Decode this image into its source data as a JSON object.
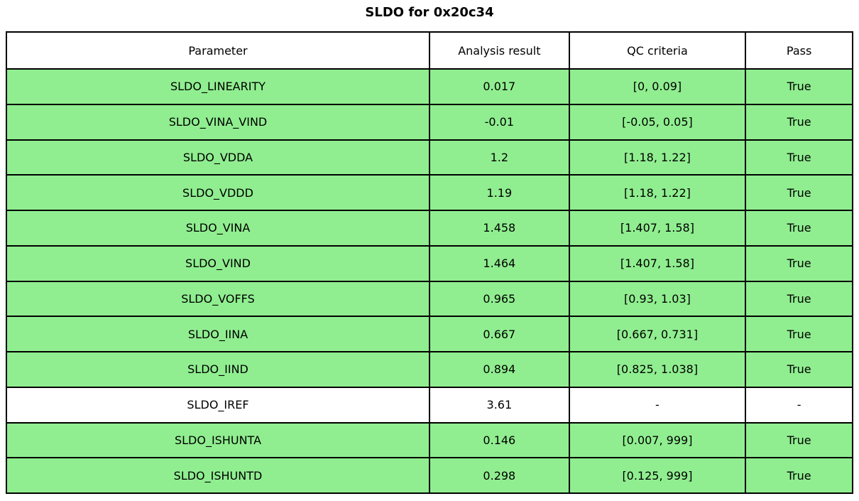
{
  "title": "SLDO for 0x20c34",
  "table": {
    "columns": [
      "Parameter",
      "Analysis result",
      "QC criteria",
      "Pass"
    ],
    "rows": [
      {
        "parameter": "SLDO_LINEARITY",
        "result": "0.017",
        "qc": "[0, 0.09]",
        "pass": "True",
        "highlight": true
      },
      {
        "parameter": "SLDO_VINA_VIND",
        "result": "-0.01",
        "qc": "[-0.05, 0.05]",
        "pass": "True",
        "highlight": true
      },
      {
        "parameter": "SLDO_VDDA",
        "result": "1.2",
        "qc": "[1.18, 1.22]",
        "pass": "True",
        "highlight": true
      },
      {
        "parameter": "SLDO_VDDD",
        "result": "1.19",
        "qc": "[1.18, 1.22]",
        "pass": "True",
        "highlight": true
      },
      {
        "parameter": "SLDO_VINA",
        "result": "1.458",
        "qc": "[1.407, 1.58]",
        "pass": "True",
        "highlight": true
      },
      {
        "parameter": "SLDO_VIND",
        "result": "1.464",
        "qc": "[1.407, 1.58]",
        "pass": "True",
        "highlight": true
      },
      {
        "parameter": "SLDO_VOFFS",
        "result": "0.965",
        "qc": "[0.93, 1.03]",
        "pass": "True",
        "highlight": true
      },
      {
        "parameter": "SLDO_IINA",
        "result": "0.667",
        "qc": "[0.667, 0.731]",
        "pass": "True",
        "highlight": true
      },
      {
        "parameter": "SLDO_IIND",
        "result": "0.894",
        "qc": "[0.825, 1.038]",
        "pass": "True",
        "highlight": true
      },
      {
        "parameter": "SLDO_IREF",
        "result": "3.61",
        "qc": "-",
        "pass": "-",
        "highlight": false
      },
      {
        "parameter": "SLDO_ISHUNTA",
        "result": "0.146",
        "qc": "[0.007, 999]",
        "pass": "True",
        "highlight": true
      },
      {
        "parameter": "SLDO_ISHUNTD",
        "result": "0.298",
        "qc": "[0.125, 999]",
        "pass": "True",
        "highlight": true
      }
    ],
    "colors": {
      "pass_row": "#90EE90",
      "neutral_row": "#FFFFFF",
      "border": "#000000"
    }
  },
  "chart_data": {
    "type": "table",
    "title": "SLDO for 0x20c34",
    "columns": [
      "Parameter",
      "Analysis result",
      "QC criteria",
      "Pass"
    ],
    "rows": [
      [
        "SLDO_LINEARITY",
        0.017,
        "[0, 0.09]",
        "True"
      ],
      [
        "SLDO_VINA_VIND",
        -0.01,
        "[-0.05, 0.05]",
        "True"
      ],
      [
        "SLDO_VDDA",
        1.2,
        "[1.18, 1.22]",
        "True"
      ],
      [
        "SLDO_VDDD",
        1.19,
        "[1.18, 1.22]",
        "True"
      ],
      [
        "SLDO_VINA",
        1.458,
        "[1.407, 1.58]",
        "True"
      ],
      [
        "SLDO_VIND",
        1.464,
        "[1.407, 1.58]",
        "True"
      ],
      [
        "SLDO_VOFFS",
        0.965,
        "[0.93, 1.03]",
        "True"
      ],
      [
        "SLDO_IINA",
        0.667,
        "[0.667, 0.731]",
        "True"
      ],
      [
        "SLDO_IIND",
        0.894,
        "[0.825, 1.038]",
        "True"
      ],
      [
        "SLDO_IREF",
        3.61,
        "-",
        "-"
      ],
      [
        "SLDO_ISHUNTA",
        0.146,
        "[0.007, 999]",
        "True"
      ],
      [
        "SLDO_ISHUNTD",
        0.298,
        "[0.125, 999]",
        "True"
      ]
    ]
  }
}
